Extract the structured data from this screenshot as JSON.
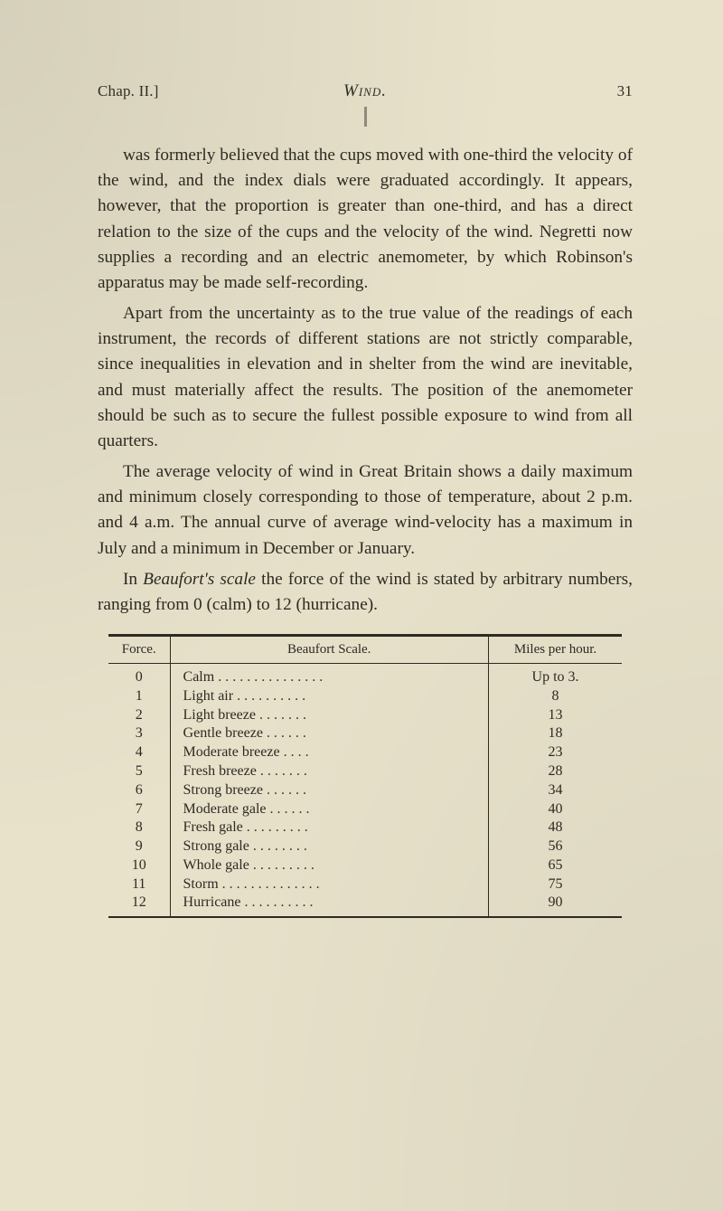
{
  "page": {
    "chap": "Chap. II.]",
    "title": "Wind.",
    "pageno": "31"
  },
  "paragraphs": {
    "p1": "was formerly believed that the cups moved with one-third the velocity of the wind, and the index dials were graduated accordingly. It appears, however, that the proportion is greater than one-third, and has a direct relation to the size of the cups and the velocity of the wind. Negretti now supplies a recording and an electric anemometer, by which Robinson's apparatus may be made self-recording.",
    "p2": "Apart from the uncertainty as to the true value of the readings of each instrument, the records of different stations are not strictly comparable, since inequalities in elevation and in shelter from the wind are inevitable, and must materially affect the results. The position of the anemometer should be such as to secure the fullest possible exposure to wind from all quarters.",
    "p3": "The average velocity of wind in Great Britain shows a daily maximum and minimum closely corresponding to those of temperature, about 2 p.m. and 4 a.m. The annual curve of average wind-velocity has a maximum in July and a minimum in December or January.",
    "p4_pre": "In ",
    "p4_em": "Beaufort's scale",
    "p4_post": " the force of the wind is stated by arbitrary numbers, ranging from 0 (calm) to 12 (hurricane)."
  },
  "table": {
    "type": "table",
    "headers": {
      "force": "Force.",
      "scale": "Beaufort Scale.",
      "miles": "Miles per hour."
    },
    "columns": [
      "Force.",
      "Beaufort Scale.",
      "Miles per hour."
    ],
    "column_align": [
      "center",
      "left",
      "center"
    ],
    "leader_char": ".",
    "border_color": "#2d2a22",
    "text_color": "#2d2a22",
    "font_size_pt": 12,
    "rows": [
      {
        "force": "0",
        "scale": "Calm",
        "miles": "Up to 3."
      },
      {
        "force": "1",
        "scale": "Light air",
        "miles": "8"
      },
      {
        "force": "2",
        "scale": "Light breeze",
        "miles": "13"
      },
      {
        "force": "3",
        "scale": "Gentle breeze",
        "miles": "18"
      },
      {
        "force": "4",
        "scale": "Moderate breeze",
        "miles": "23"
      },
      {
        "force": "5",
        "scale": "Fresh breeze",
        "miles": "28"
      },
      {
        "force": "6",
        "scale": "Strong breeze",
        "miles": "34"
      },
      {
        "force": "7",
        "scale": "Moderate gale",
        "miles": "40"
      },
      {
        "force": "8",
        "scale": "Fresh gale",
        "miles": "48"
      },
      {
        "force": "9",
        "scale": "Strong gale",
        "miles": "56"
      },
      {
        "force": "10",
        "scale": "Whole gale",
        "miles": "65"
      },
      {
        "force": "11",
        "scale": "Storm",
        "miles": "75"
      },
      {
        "force": "12",
        "scale": "Hurricane",
        "miles": "90"
      }
    ]
  },
  "style": {
    "background_color": "#e8e2cb",
    "body_font_size_pt": 14.5,
    "line_height": 1.46
  }
}
